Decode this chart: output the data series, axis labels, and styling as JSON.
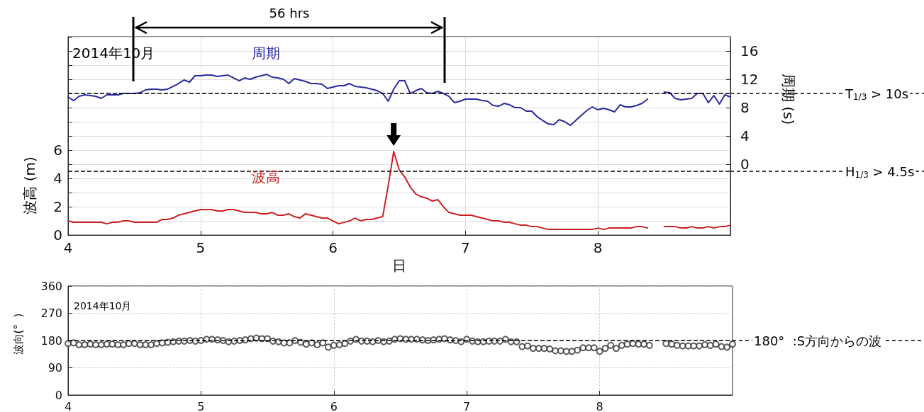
{
  "chart_data": [
    {
      "type": "line",
      "annotations": [
        "56 hrs",
        "2014年10月"
      ],
      "xlabel": "日",
      "ylabel": "波高 (m)",
      "y2label": "周期 (s)",
      "x": [
        4,
        4.042,
        4.083,
        4.125,
        4.167,
        4.208,
        4.25,
        4.292,
        4.333,
        4.375,
        4.417,
        4.458,
        4.5,
        4.542,
        4.583,
        4.625,
        4.667,
        4.708,
        4.75,
        4.792,
        4.833,
        4.875,
        4.917,
        4.958,
        5,
        5.042,
        5.083,
        5.125,
        5.167,
        5.208,
        5.25,
        5.292,
        5.333,
        5.375,
        5.417,
        5.458,
        5.5,
        5.542,
        5.583,
        5.625,
        5.667,
        5.708,
        5.75,
        5.792,
        5.833,
        5.875,
        5.917,
        5.958,
        6,
        6.042,
        6.083,
        6.125,
        6.167,
        6.208,
        6.25,
        6.292,
        6.333,
        6.375,
        6.417,
        6.458,
        6.5,
        6.542,
        6.583,
        6.625,
        6.667,
        6.708,
        6.75,
        6.792,
        6.833,
        6.875,
        6.917,
        6.958,
        7,
        7.042,
        7.083,
        7.125,
        7.167,
        7.208,
        7.25,
        7.292,
        7.333,
        7.375,
        7.417,
        7.458,
        7.5,
        7.542,
        7.583,
        7.625,
        7.667,
        7.708,
        7.75,
        7.792,
        7.833,
        7.875,
        7.917,
        7.958,
        8,
        8.042,
        8.083,
        8.125,
        8.167,
        8.208,
        8.25,
        8.292,
        8.333,
        8.375,
        8.417,
        8.458,
        8.5,
        8.542,
        8.583,
        8.625,
        8.667,
        8.708,
        8.75,
        8.792,
        8.833,
        8.875,
        8.917,
        8.958,
        9
      ],
      "series": [
        {
          "name": "周期",
          "color": "#2b2ba0",
          "axis": "y2",
          "values": [
            9.5,
            9.0,
            9.6,
            9.8,
            9.7,
            9.6,
            9.3,
            9.8,
            9.8,
            9.8,
            10.0,
            10.0,
            10.0,
            10.1,
            10.5,
            10.6,
            10.6,
            10.5,
            10.6,
            11.0,
            11.4,
            11.9,
            11.6,
            12.5,
            12.5,
            12.6,
            12.6,
            12.4,
            12.5,
            12.6,
            12.2,
            11.8,
            12.2,
            12.0,
            12.3,
            12.5,
            12.7,
            12.3,
            12.2,
            12.0,
            11.4,
            12.1,
            11.9,
            11.7,
            11.4,
            11.4,
            11.3,
            10.7,
            10.9,
            11.1,
            11.1,
            11.4,
            11.0,
            10.9,
            10.8,
            10.6,
            10.4,
            10.0,
            8.9,
            10.6,
            11.8,
            11.8,
            10.0,
            10.4,
            10.7,
            10.1,
            10.0,
            10.3,
            10.0,
            9.6,
            8.7,
            8.9,
            9.2,
            9.2,
            9.2,
            9.0,
            8.9,
            8.3,
            8.2,
            8.6,
            8.4,
            8.0,
            8.0,
            7.5,
            7.5,
            6.7,
            6.2,
            5.7,
            5.6,
            6.3,
            6.0,
            5.5,
            6.2,
            6.9,
            7.6,
            8.1,
            7.7,
            7.9,
            7.7,
            7.4,
            8.4,
            8.1,
            8.1,
            8.3,
            8.6,
            9.2,
            null,
            null,
            10.2,
            10.1,
            9.3,
            9.1,
            9.2,
            9.3,
            10.0,
            10.0,
            8.7,
            9.7,
            8.5,
            9.8,
            9.5
          ]
        },
        {
          "name": "波高",
          "color": "#cc2020",
          "values": [
            1.0,
            0.9,
            0.9,
            0.9,
            0.9,
            0.9,
            0.9,
            0.8,
            0.9,
            0.9,
            1.0,
            1.0,
            0.9,
            0.9,
            0.9,
            0.9,
            0.9,
            1.1,
            1.1,
            1.2,
            1.4,
            1.5,
            1.6,
            1.7,
            1.8,
            1.8,
            1.8,
            1.7,
            1.7,
            1.8,
            1.8,
            1.7,
            1.6,
            1.6,
            1.6,
            1.5,
            1.5,
            1.6,
            1.4,
            1.4,
            1.5,
            1.3,
            1.2,
            1.5,
            1.4,
            1.3,
            1.2,
            1.2,
            1.0,
            0.8,
            0.9,
            1.0,
            1.2,
            1.0,
            1.1,
            1.1,
            1.2,
            1.3,
            3.5,
            5.9,
            4.6,
            4.1,
            3.4,
            2.9,
            2.7,
            2.6,
            2.4,
            2.5,
            2.0,
            1.6,
            1.5,
            1.4,
            1.4,
            1.4,
            1.3,
            1.2,
            1.1,
            1.0,
            1.0,
            0.9,
            0.9,
            0.8,
            0.7,
            0.7,
            0.6,
            0.6,
            0.5,
            0.4,
            0.4,
            0.4,
            0.4,
            0.4,
            0.4,
            0.4,
            0.4,
            0.4,
            0.5,
            0.4,
            0.5,
            0.5,
            0.5,
            0.5,
            0.5,
            0.6,
            0.6,
            0.5,
            null,
            null,
            0.6,
            0.6,
            0.6,
            0.5,
            0.5,
            0.6,
            0.5,
            0.5,
            0.6,
            0.5,
            0.6,
            0.6,
            0.7
          ]
        }
      ],
      "xlim": [
        4,
        9
      ],
      "xticks": [
        4,
        5,
        6,
        7,
        8
      ],
      "ylim": [
        0,
        14
      ],
      "yticks": [
        0,
        {
          "value": 1,
          "label": null
        },
        2,
        {
          "value": 3,
          "label": null
        },
        4,
        {
          "value": 5,
          "label": null
        },
        6,
        {
          "value": 7,
          "label": null
        },
        {
          "value": 8,
          "label": null
        },
        {
          "value": 9,
          "label": null
        },
        {
          "value": 10,
          "label": null
        },
        {
          "value": 11,
          "label": null
        },
        {
          "value": 12,
          "label": null
        },
        {
          "value": 13,
          "label": null
        },
        {
          "value": 14,
          "label": null
        }
      ],
      "y2lim": [
        -10,
        18
      ],
      "y2ticks": [
        0,
        4,
        8,
        12,
        16
      ],
      "ref_lines": [
        {
          "axis": "y2",
          "value": 10,
          "label": "T$_{1/3}$ > 10s",
          "color": "#000000",
          "line_style": "dashed"
        },
        {
          "axis": "y",
          "value": 4.5,
          "label": "H$_{1/3}$ > 4.5s",
          "color": "#000000",
          "line_style": "dashed"
        }
      ],
      "grid": true,
      "marker": "none",
      "line_style": "solid"
    },
    {
      "type": "scatter",
      "annotations": [
        "2014年10月"
      ],
      "ylabel": "波向(°  )",
      "color": "#333333",
      "marker": "circle",
      "x": [
        4,
        4.042,
        4.083,
        4.125,
        4.167,
        4.208,
        4.25,
        4.292,
        4.333,
        4.375,
        4.417,
        4.458,
        4.5,
        4.542,
        4.583,
        4.625,
        4.667,
        4.708,
        4.75,
        4.792,
        4.833,
        4.875,
        4.917,
        4.958,
        5,
        5.042,
        5.083,
        5.125,
        5.167,
        5.208,
        5.25,
        5.292,
        5.333,
        5.375,
        5.417,
        5.458,
        5.5,
        5.542,
        5.583,
        5.625,
        5.667,
        5.708,
        5.75,
        5.792,
        5.833,
        5.875,
        5.917,
        5.958,
        6,
        6.042,
        6.083,
        6.125,
        6.167,
        6.208,
        6.25,
        6.292,
        6.333,
        6.375,
        6.417,
        6.458,
        6.5,
        6.542,
        6.583,
        6.625,
        6.667,
        6.708,
        6.75,
        6.792,
        6.833,
        6.875,
        6.917,
        6.958,
        7,
        7.042,
        7.083,
        7.125,
        7.167,
        7.208,
        7.25,
        7.292,
        7.333,
        7.375,
        7.417,
        7.458,
        7.5,
        7.542,
        7.583,
        7.625,
        7.667,
        7.708,
        7.75,
        7.792,
        7.833,
        7.875,
        7.917,
        7.958,
        8,
        8.042,
        8.083,
        8.125,
        8.167,
        8.208,
        8.25,
        8.292,
        8.333,
        8.375,
        8.417,
        8.458,
        8.5,
        8.542,
        8.583,
        8.625,
        8.667,
        8.708,
        8.75,
        8.792,
        8.833,
        8.875,
        8.917,
        8.958,
        9
      ],
      "values": [
        170,
        172,
        166,
        166,
        168,
        166,
        166,
        168,
        168,
        166,
        166,
        170,
        170,
        166,
        166,
        166,
        170,
        172,
        174,
        176,
        178,
        178,
        180,
        178,
        180,
        184,
        184,
        182,
        180,
        176,
        178,
        180,
        182,
        186,
        188,
        186,
        186,
        178,
        176,
        172,
        172,
        180,
        174,
        168,
        172,
        166,
        172,
        158,
        164,
        166,
        170,
        178,
        184,
        178,
        178,
        176,
        180,
        176,
        178,
        184,
        186,
        184,
        184,
        184,
        182,
        180,
        182,
        184,
        186,
        182,
        180,
        176,
        184,
        178,
        176,
        176,
        178,
        178,
        178,
        184,
        176,
        176,
        160,
        162,
        154,
        154,
        154,
        152,
        146,
        146,
        144,
        144,
        148,
        156,
        156,
        156,
        144,
        154,
        164,
        154,
        164,
        168,
        170,
        168,
        168,
        164,
        null,
        null,
        170,
        168,
        164,
        162,
        162,
        162,
        162,
        166,
        164,
        168,
        160,
        158,
        168
      ],
      "xlim": [
        4,
        9
      ],
      "xticks": [
        4,
        5,
        6,
        7,
        8
      ],
      "ylim": [
        0,
        360
      ],
      "yticks": [
        0,
        90,
        180,
        270,
        360
      ],
      "ref_lines": [
        {
          "axis": "y",
          "value": 180,
          "label": "180°  :S方向からの波",
          "color": "#000000",
          "line_style": "dashed"
        }
      ],
      "grid": true
    }
  ]
}
